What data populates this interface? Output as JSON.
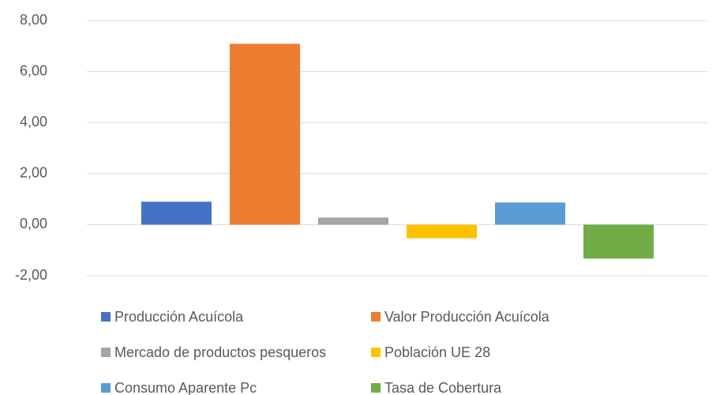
{
  "chart_data": {
    "type": "bar",
    "categories": [
      null
    ],
    "series": [
      {
        "name": "Producción Acuícola",
        "color": "#4472c4",
        "values": [
          0.9
        ]
      },
      {
        "name": "Valor Producción Acuícola",
        "color": "#ed7d31",
        "values": [
          7.09
        ]
      },
      {
        "name": "Mercado de productos pesqueros",
        "color": "#a5a5a5",
        "values": [
          0.28
        ]
      },
      {
        "name": "Población UE 28",
        "color": "#ffc000",
        "values": [
          -0.53
        ]
      },
      {
        "name": "Consumo Aparente Pc",
        "color": "#5b9bd5",
        "values": [
          0.87
        ]
      },
      {
        "name": "Tasa de Cobertura",
        "color": "#70ad47",
        "values": [
          -1.33
        ]
      }
    ],
    "ylim": [
      -2,
      8
    ],
    "yticks": [
      {
        "value": -2,
        "label": "-2,00"
      },
      {
        "value": 0,
        "label": "0,00"
      },
      {
        "value": 2,
        "label": "2,00"
      },
      {
        "value": 4,
        "label": "4,00"
      },
      {
        "value": 6,
        "label": "6,00"
      },
      {
        "value": 8,
        "label": "8,00"
      }
    ],
    "grid": true,
    "legend": "bottom"
  }
}
